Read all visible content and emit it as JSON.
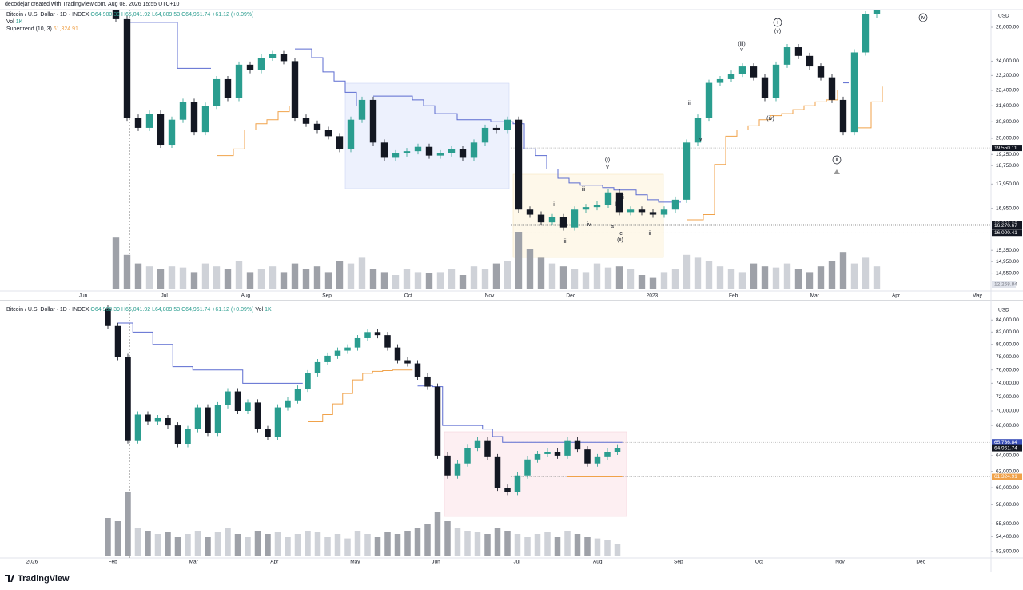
{
  "watermark": "decodejar created with TradingView.com, Aug 08, 2026 15:55 UTC+10",
  "logo": "TradingView",
  "chart_data": [
    {
      "type": "candlestick",
      "symbol": "Bitcoin / U.S. Dollar · 1D · INDEX",
      "ohlc": [
        "O64,900.39",
        "H65,041.92",
        "L64,809.53",
        "C64,961.74",
        "+61.12 (+0.09%)"
      ],
      "vol_legend": "Vol",
      "vol_value": "1K",
      "indicator": "Supertrend (10, 3)",
      "indicator_value": "61,324.91",
      "currency": "USD",
      "log_scale": true,
      "ylim": [
        14000,
        27000
      ],
      "yticks": [
        {
          "value": 26000,
          "label": "26,000.00"
        },
        {
          "value": 24000,
          "label": "24,000.00"
        },
        {
          "value": 23200,
          "label": "23,200.00"
        },
        {
          "value": 22400,
          "label": "22,400.00"
        },
        {
          "value": 21600,
          "label": "21,600.00"
        },
        {
          "value": 20800,
          "label": "20,800.00"
        },
        {
          "value": 20000,
          "label": "20,000.00"
        },
        {
          "value": 19250,
          "label": "19,250.00"
        },
        {
          "value": 18750,
          "label": "18,750.00"
        },
        {
          "value": 17950,
          "label": "17,950.00"
        },
        {
          "value": 16950,
          "label": "16,950.00"
        },
        {
          "value": 15350,
          "label": "15,350.00"
        },
        {
          "value": 14950,
          "label": "14,950.00"
        },
        {
          "value": 14550,
          "label": "14,550.00"
        }
      ],
      "price_labels": [
        {
          "value": 19550.11,
          "label": "19,550.11",
          "color": "#131722"
        },
        {
          "value": 16332.92,
          "label": "16,332.92",
          "color": "#131722"
        },
        {
          "value": 16270.67,
          "label": "16,270.67",
          "color": "#131722"
        },
        {
          "value": 16000.41,
          "label": "16,000.41",
          "color": "#131722"
        }
      ],
      "volume_label": "12,268.84",
      "time_labels": [
        "Jun",
        "Jul",
        "Aug",
        "Sep",
        "Oct",
        "Nov",
        "Dec",
        "2023",
        "Feb",
        "Mar",
        "Apr",
        "May"
      ],
      "open": 30000,
      "values": [
        26500,
        21000,
        20500,
        21200,
        19700,
        20900,
        21800,
        20300,
        21600,
        23000,
        22000,
        23800,
        23500,
        24200,
        24400,
        24000,
        21000,
        20700,
        20400,
        20100,
        19500,
        20900,
        21900,
        19800,
        19100,
        19300,
        19400,
        19600,
        19200,
        19300,
        19500,
        19100,
        19800,
        20500,
        20400,
        20900,
        16900,
        16700,
        16400,
        16600,
        16200,
        16900,
        17000,
        17100,
        17600,
        16800,
        16900,
        16800,
        16700,
        16900,
        17300,
        19800,
        21000,
        22800,
        23000,
        23300,
        23700,
        23100,
        22000,
        23800,
        24800,
        24300,
        23700,
        23100,
        21900,
        20300,
        24500,
        26800,
        27200
      ],
      "volume": [
        90,
        60,
        45,
        40,
        35,
        40,
        38,
        30,
        45,
        40,
        35,
        50,
        30,
        35,
        40,
        30,
        45,
        35,
        40,
        30,
        50,
        45,
        55,
        35,
        30,
        25,
        35,
        30,
        28,
        30,
        35,
        25,
        40,
        35,
        45,
        50,
        100,
        70,
        55,
        45,
        40,
        35,
        30,
        45,
        38,
        40,
        35,
        25,
        20,
        30,
        35,
        60,
        55,
        50,
        40,
        35,
        30,
        45,
        40,
        38,
        45,
        35,
        30,
        40,
        50,
        65,
        45,
        55,
        40
      ],
      "supertrend_down": [
        null,
        26300,
        26300,
        26300,
        26300,
        23600,
        23600,
        23600,
        23600,
        null,
        null,
        null,
        null,
        null,
        null,
        null,
        24700,
        24200,
        23400,
        22900,
        22300,
        21600,
        null,
        22100,
        22100,
        22100,
        21900,
        21600,
        21200,
        21200,
        20900,
        20900,
        20900,
        20800,
        20800,
        20700,
        19500,
        19200,
        18600,
        18200,
        18000,
        17900,
        17900,
        17800,
        17700,
        17700,
        17500,
        17300,
        17200,
        17200,
        17200,
        null,
        null,
        null,
        null,
        null,
        null,
        null,
        null,
        null,
        null,
        null,
        null,
        null,
        null,
        22800,
        null,
        null,
        null
      ],
      "supertrend_up": [
        null,
        null,
        null,
        null,
        null,
        null,
        null,
        null,
        null,
        19200,
        19500,
        20400,
        20700,
        20900,
        21300,
        21600,
        null,
        null,
        null,
        null,
        null,
        null,
        null,
        null,
        null,
        null,
        null,
        null,
        null,
        null,
        null,
        null,
        null,
        null,
        null,
        null,
        null,
        null,
        null,
        null,
        null,
        null,
        null,
        null,
        null,
        null,
        null,
        null,
        null,
        null,
        null,
        16500,
        16700,
        18800,
        20100,
        20400,
        20600,
        20900,
        21100,
        21200,
        21400,
        21600,
        21800,
        21900,
        22400,
        null,
        20500,
        21800,
        22600
      ],
      "colors": {
        "up": "#2a9d8f",
        "down": "#131722",
        "trend_down": "#5b6bd0",
        "trend_up": "#f0a24a"
      },
      "wave_labels": [
        "(i)",
        "v",
        "iii",
        "i",
        "iv",
        "ii",
        "b",
        "a",
        "i",
        "c",
        "(ii)",
        "ii",
        "iii",
        "iv",
        "(iii)",
        "v",
        "(iv)",
        "i",
        "(v)",
        "ii",
        "iv"
      ]
    },
    {
      "type": "candlestick",
      "symbol": "Bitcoin / U.S. Dollar · 1D · INDEX",
      "ohlc": [
        "O64,900.39",
        "H65,041.92",
        "L64,809.53",
        "C64,961.74",
        "+61.12 (+0.09%)"
      ],
      "vol_legend": "Vol",
      "vol_value": "1K",
      "currency": "USD",
      "log_scale": true,
      "ylim": [
        52200,
        86500
      ],
      "yticks": [
        {
          "value": 84000,
          "label": "84,000.00"
        },
        {
          "value": 82000,
          "label": "82,000.00"
        },
        {
          "value": 80000,
          "label": "80,000.00"
        },
        {
          "value": 78000,
          "label": "78,000.00"
        },
        {
          "value": 76000,
          "label": "76,000.00"
        },
        {
          "value": 74000,
          "label": "74,000.00"
        },
        {
          "value": 72000,
          "label": "72,000.00"
        },
        {
          "value": 70000,
          "label": "70,000.00"
        },
        {
          "value": 68000,
          "label": "68,000.00"
        },
        {
          "value": 64000,
          "label": "64,000.00"
        },
        {
          "value": 62000,
          "label": "62,000.00"
        },
        {
          "value": 60000,
          "label": "60,000.00"
        },
        {
          "value": 58000,
          "label": "58,000.00"
        },
        {
          "value": 55800,
          "label": "55,800.00"
        },
        {
          "value": 54400,
          "label": "54,400.00"
        },
        {
          "value": 52800,
          "label": "52,800.00"
        }
      ],
      "price_labels": [
        {
          "value": 65736.84,
          "label": "65,736.84",
          "color": "#3a4fb8"
        },
        {
          "value": 64961.74,
          "label": "64,961.74",
          "color": "#131722"
        },
        {
          "value": 61324.91,
          "label": "61,324.91",
          "color": "#f0a24a"
        }
      ],
      "time_labels": [
        "2026",
        "Feb",
        "Mar",
        "Apr",
        "May",
        "Jun",
        "Jul",
        "Aug",
        "Sep",
        "Oct",
        "Nov",
        "Dec"
      ],
      "open": 86000,
      "values": [
        83000,
        78000,
        66000,
        69500,
        68500,
        69000,
        68000,
        65500,
        67500,
        70500,
        67000,
        70800,
        72800,
        70000,
        71200,
        67500,
        66500,
        70500,
        71500,
        73200,
        75500,
        77200,
        78200,
        79000,
        79500,
        81000,
        82000,
        81500,
        79500,
        77500,
        77000,
        75000,
        73500,
        64000,
        61500,
        63000,
        65000,
        66000,
        63800,
        60000,
        59500,
        61500,
        63500,
        64200,
        64500,
        64000,
        66000,
        64800,
        63000,
        63800,
        64500,
        64961.74
      ],
      "volume": [
        60,
        55,
        100,
        45,
        40,
        35,
        38,
        30,
        35,
        40,
        30,
        38,
        45,
        35,
        30,
        40,
        35,
        38,
        30,
        35,
        40,
        38,
        30,
        35,
        28,
        40,
        35,
        30,
        38,
        35,
        40,
        45,
        50,
        70,
        55,
        45,
        40,
        38,
        35,
        45,
        40,
        35,
        30,
        35,
        38,
        30,
        40,
        35,
        30,
        28,
        25,
        20
      ],
      "supertrend_down": [
        null,
        83500,
        82000,
        82000,
        80000,
        80000,
        76500,
        76500,
        76000,
        76000,
        76000,
        76000,
        76000,
        74000,
        74000,
        74000,
        74000,
        74000,
        74000,
        74000,
        null,
        null,
        null,
        null,
        null,
        null,
        null,
        null,
        null,
        null,
        null,
        73600,
        73500,
        68000,
        68000,
        68000,
        68000,
        67500,
        66500,
        65736.84,
        65736.84,
        65736.84,
        65736.84,
        65736.84,
        65736.84,
        65736.84,
        65736.84,
        65736.84,
        65736.84,
        65736.84,
        65736.84,
        65736.84
      ],
      "supertrend_up": [
        null,
        null,
        null,
        null,
        null,
        null,
        null,
        null,
        null,
        null,
        null,
        null,
        null,
        null,
        null,
        null,
        null,
        null,
        null,
        null,
        68500,
        69500,
        71000,
        72500,
        74500,
        75500,
        75800,
        75900,
        76000,
        76000,
        76000,
        null,
        null,
        null,
        null,
        null,
        null,
        null,
        null,
        null,
        null,
        null,
        null,
        null,
        null,
        null,
        61324.91,
        61324.91,
        61324.91,
        61324.91,
        61324.91,
        61324.91
      ],
      "colors": {
        "up": "#2a9d8f",
        "down": "#131722",
        "trend_down": "#5b6bd0",
        "trend_up": "#f0a24a"
      }
    }
  ]
}
